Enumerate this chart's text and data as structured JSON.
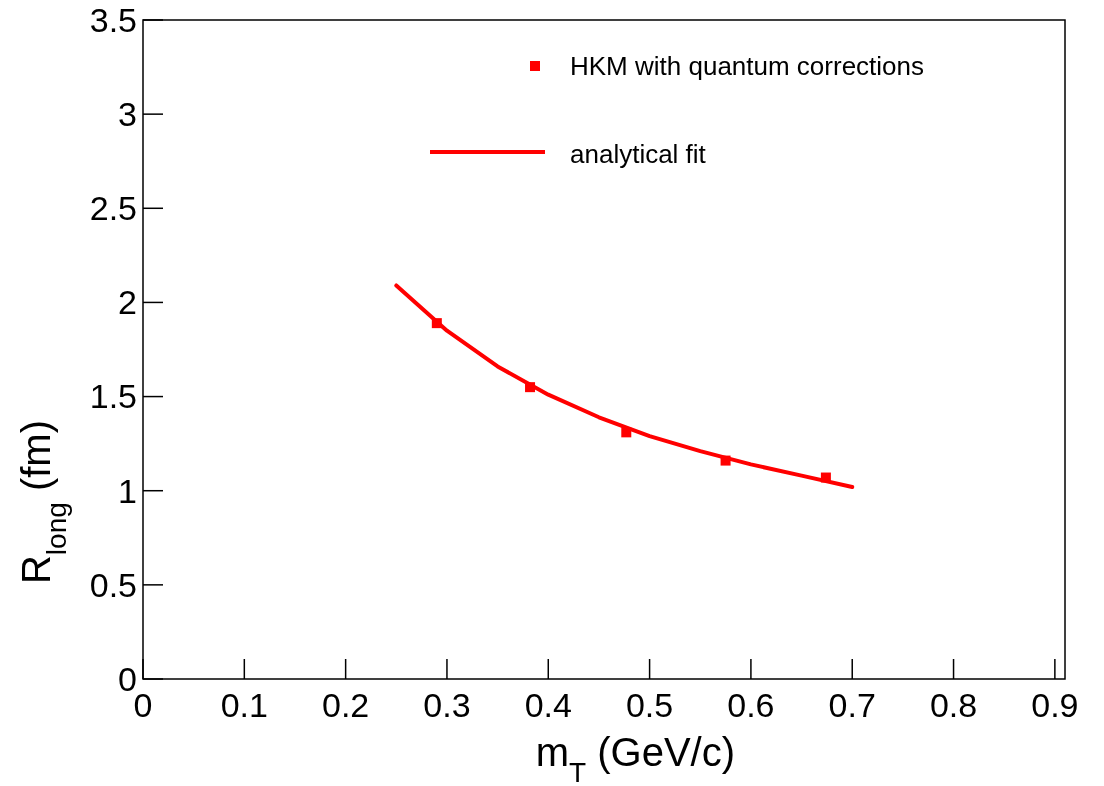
{
  "chart_data": {
    "type": "scatter",
    "xlabel": "m$_{T}$ (GeV/c)",
    "ylabel": "R$_{long}$ (fm)",
    "xlim": [
      0,
      0.91
    ],
    "ylim": [
      0,
      3.5
    ],
    "xticks": [
      0,
      0.1,
      0.2,
      0.3,
      0.4,
      0.5,
      0.6,
      0.7,
      0.8,
      0.9
    ],
    "yticks": [
      0,
      0.5,
      1,
      1.5,
      2,
      2.5,
      3,
      3.5
    ],
    "grid": false,
    "legend": "top right",
    "series": [
      {
        "name": "HKM with quantum corrections",
        "marker": "square",
        "color": "#ff0000",
        "x": [
          0.29,
          0.382,
          0.477,
          0.575,
          0.674
        ],
        "values": [
          1.89,
          1.55,
          1.31,
          1.16,
          1.07
        ]
      },
      {
        "name": "analytical fit",
        "type": "line",
        "marker": "none",
        "line_style": "solid",
        "color": "#ff0000",
        "x": [
          0.25,
          0.3,
          0.35,
          0.4,
          0.45,
          0.5,
          0.55,
          0.6,
          0.65,
          0.7
        ],
        "values": [
          2.09,
          1.85,
          1.66,
          1.51,
          1.39,
          1.29,
          1.21,
          1.14,
          1.08,
          1.02
        ]
      }
    ]
  }
}
